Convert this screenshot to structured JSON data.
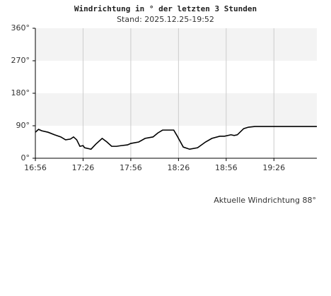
{
  "chart_data": {
    "type": "line",
    "title": "Windrichtung in ° der letzten 3 Stunden",
    "subtitle": "Stand: 2025.12.25-19:52",
    "x": [
      1016,
      1018,
      1020,
      1024,
      1028,
      1032,
      1035,
      1038,
      1040,
      1042,
      1044,
      1046,
      1047,
      1051,
      1054,
      1058,
      1061,
      1064,
      1067,
      1070,
      1074,
      1076,
      1081,
      1085,
      1090,
      1093,
      1096,
      1103,
      1105,
      1109,
      1113,
      1118,
      1123,
      1127,
      1132,
      1135,
      1139,
      1141,
      1143,
      1147,
      1150,
      1154,
      1193
    ],
    "series": [
      {
        "color": "#000000",
        "values": [
          72,
          80,
          76,
          72,
          65,
          59,
          51,
          53,
          59,
          51,
          33,
          35,
          29,
          25,
          39,
          55,
          45,
          33,
          33,
          35,
          37,
          41,
          45,
          55,
          59,
          70,
          78,
          78,
          63,
          31,
          25,
          29,
          45,
          55,
          61,
          61,
          65,
          63,
          65,
          82,
          86,
          88,
          88
        ]
      }
    ],
    "xlim": [
      1016,
      1193
    ],
    "xticks": [
      {
        "value": 1016,
        "label": "16:56"
      },
      {
        "value": 1046,
        "label": "17:26"
      },
      {
        "value": 1076,
        "label": "17:56"
      },
      {
        "value": 1106,
        "label": "18:26"
      },
      {
        "value": 1136,
        "label": "18:56"
      },
      {
        "value": 1166,
        "label": "19:26"
      }
    ],
    "ylim": [
      0,
      360
    ],
    "yticks": [
      {
        "value": 0,
        "label": "0°"
      },
      {
        "value": 90,
        "label": "90°"
      },
      {
        "value": 180,
        "label": "180°"
      },
      {
        "value": 270,
        "label": "270°"
      },
      {
        "value": 360,
        "label": "360°"
      }
    ],
    "grid": true,
    "band_color": "#f3f3f3",
    "annotation": "Aktuelle Windrichtung 88°"
  }
}
